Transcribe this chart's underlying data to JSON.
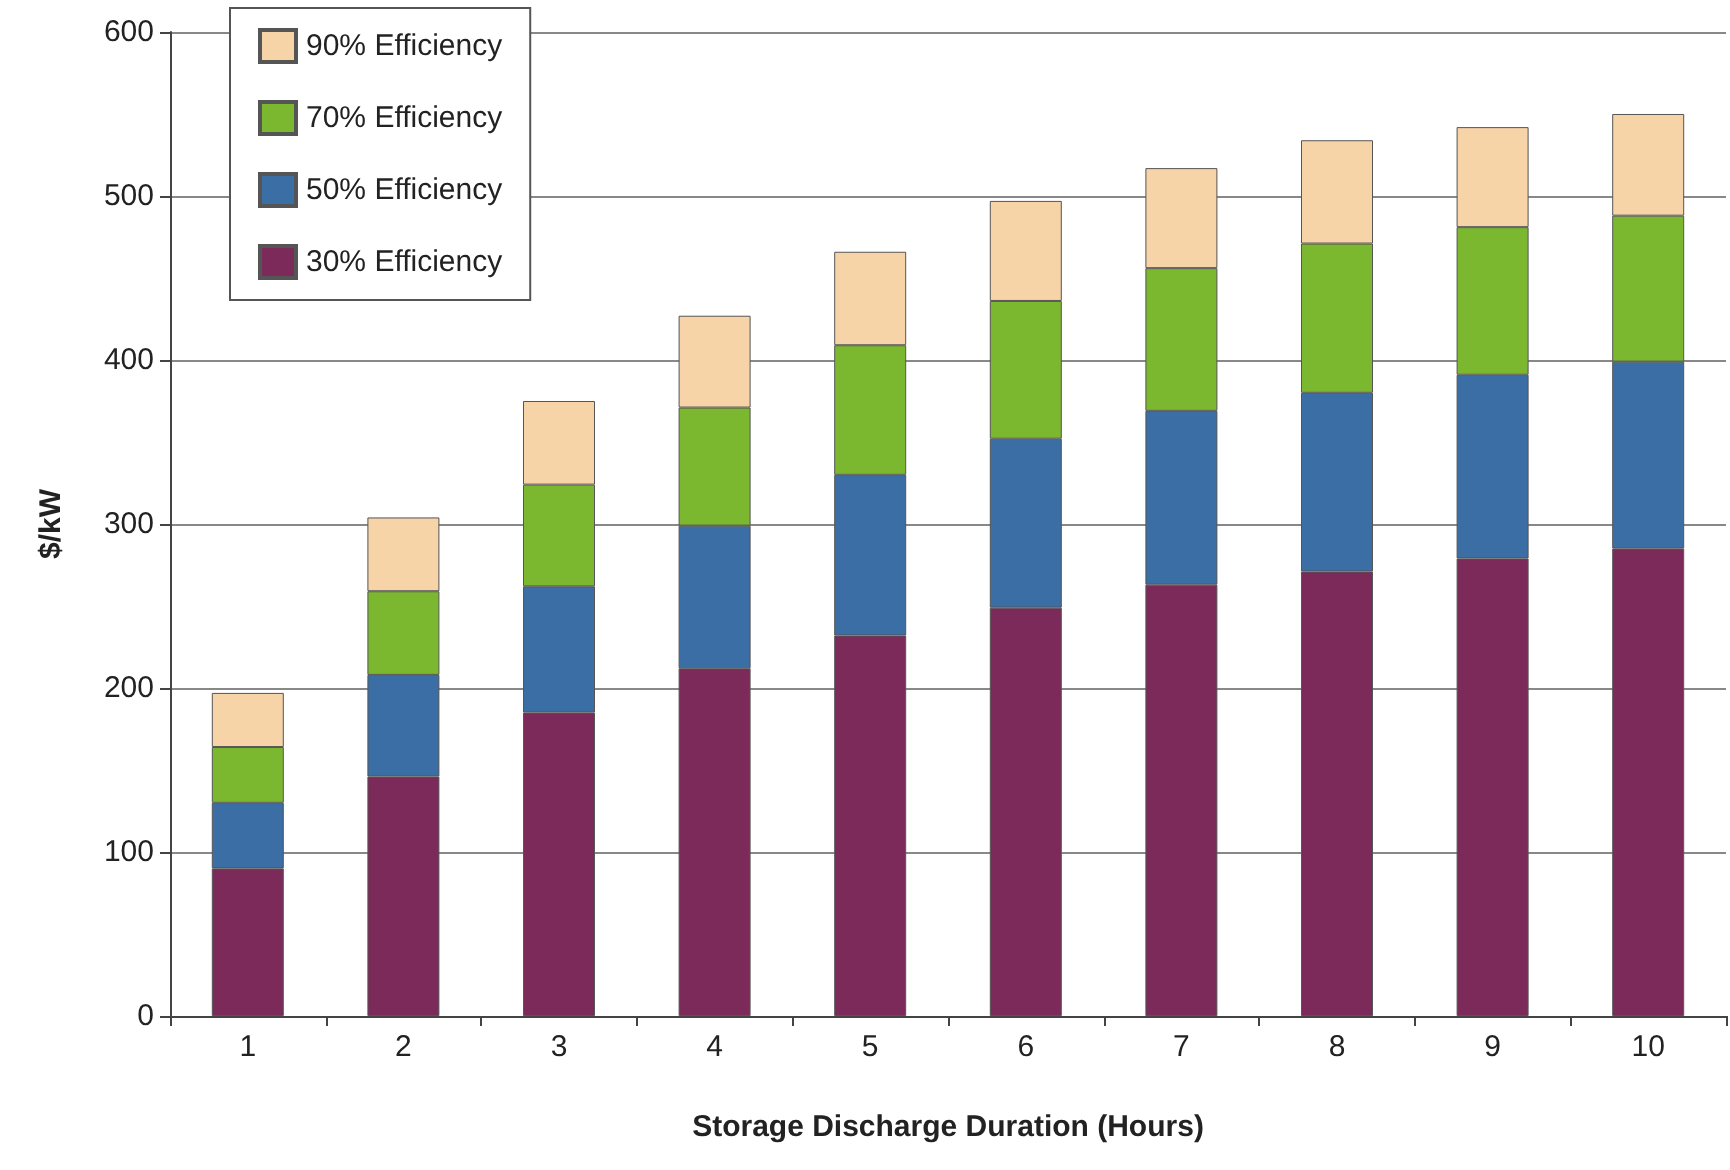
{
  "chart_data": {
    "type": "bar",
    "stacked": true,
    "xlabel": "Storage Discharge Duration (Hours)",
    "ylabel": "$/kW",
    "categories": [
      "1",
      "2",
      "3",
      "4",
      "5",
      "6",
      "7",
      "8",
      "9",
      "10"
    ],
    "series": [
      {
        "name": "30% Efficiency",
        "color": "#7b2a5a",
        "values": [
          90,
          146,
          185,
          212,
          232,
          249,
          263,
          271,
          279,
          285
        ]
      },
      {
        "name": "50% Efficiency",
        "color": "#3a6ea5",
        "values": [
          40,
          62,
          77,
          87,
          98,
          103,
          106,
          109,
          112,
          114
        ]
      },
      {
        "name": "70% Efficiency",
        "color": "#7cb82f",
        "values": [
          34,
          51,
          62,
          72,
          79,
          84,
          87,
          91,
          90,
          89
        ]
      },
      {
        "name": "90% Efficiency",
        "color": "#f7d3a8",
        "values": [
          33,
          45,
          51,
          56,
          57,
          61,
          61,
          63,
          61,
          62
        ]
      }
    ],
    "ylim": [
      0,
      600
    ],
    "yticks": [
      0,
      100,
      200,
      300,
      400,
      500,
      600
    ],
    "grid": "y",
    "legend": "top left"
  }
}
